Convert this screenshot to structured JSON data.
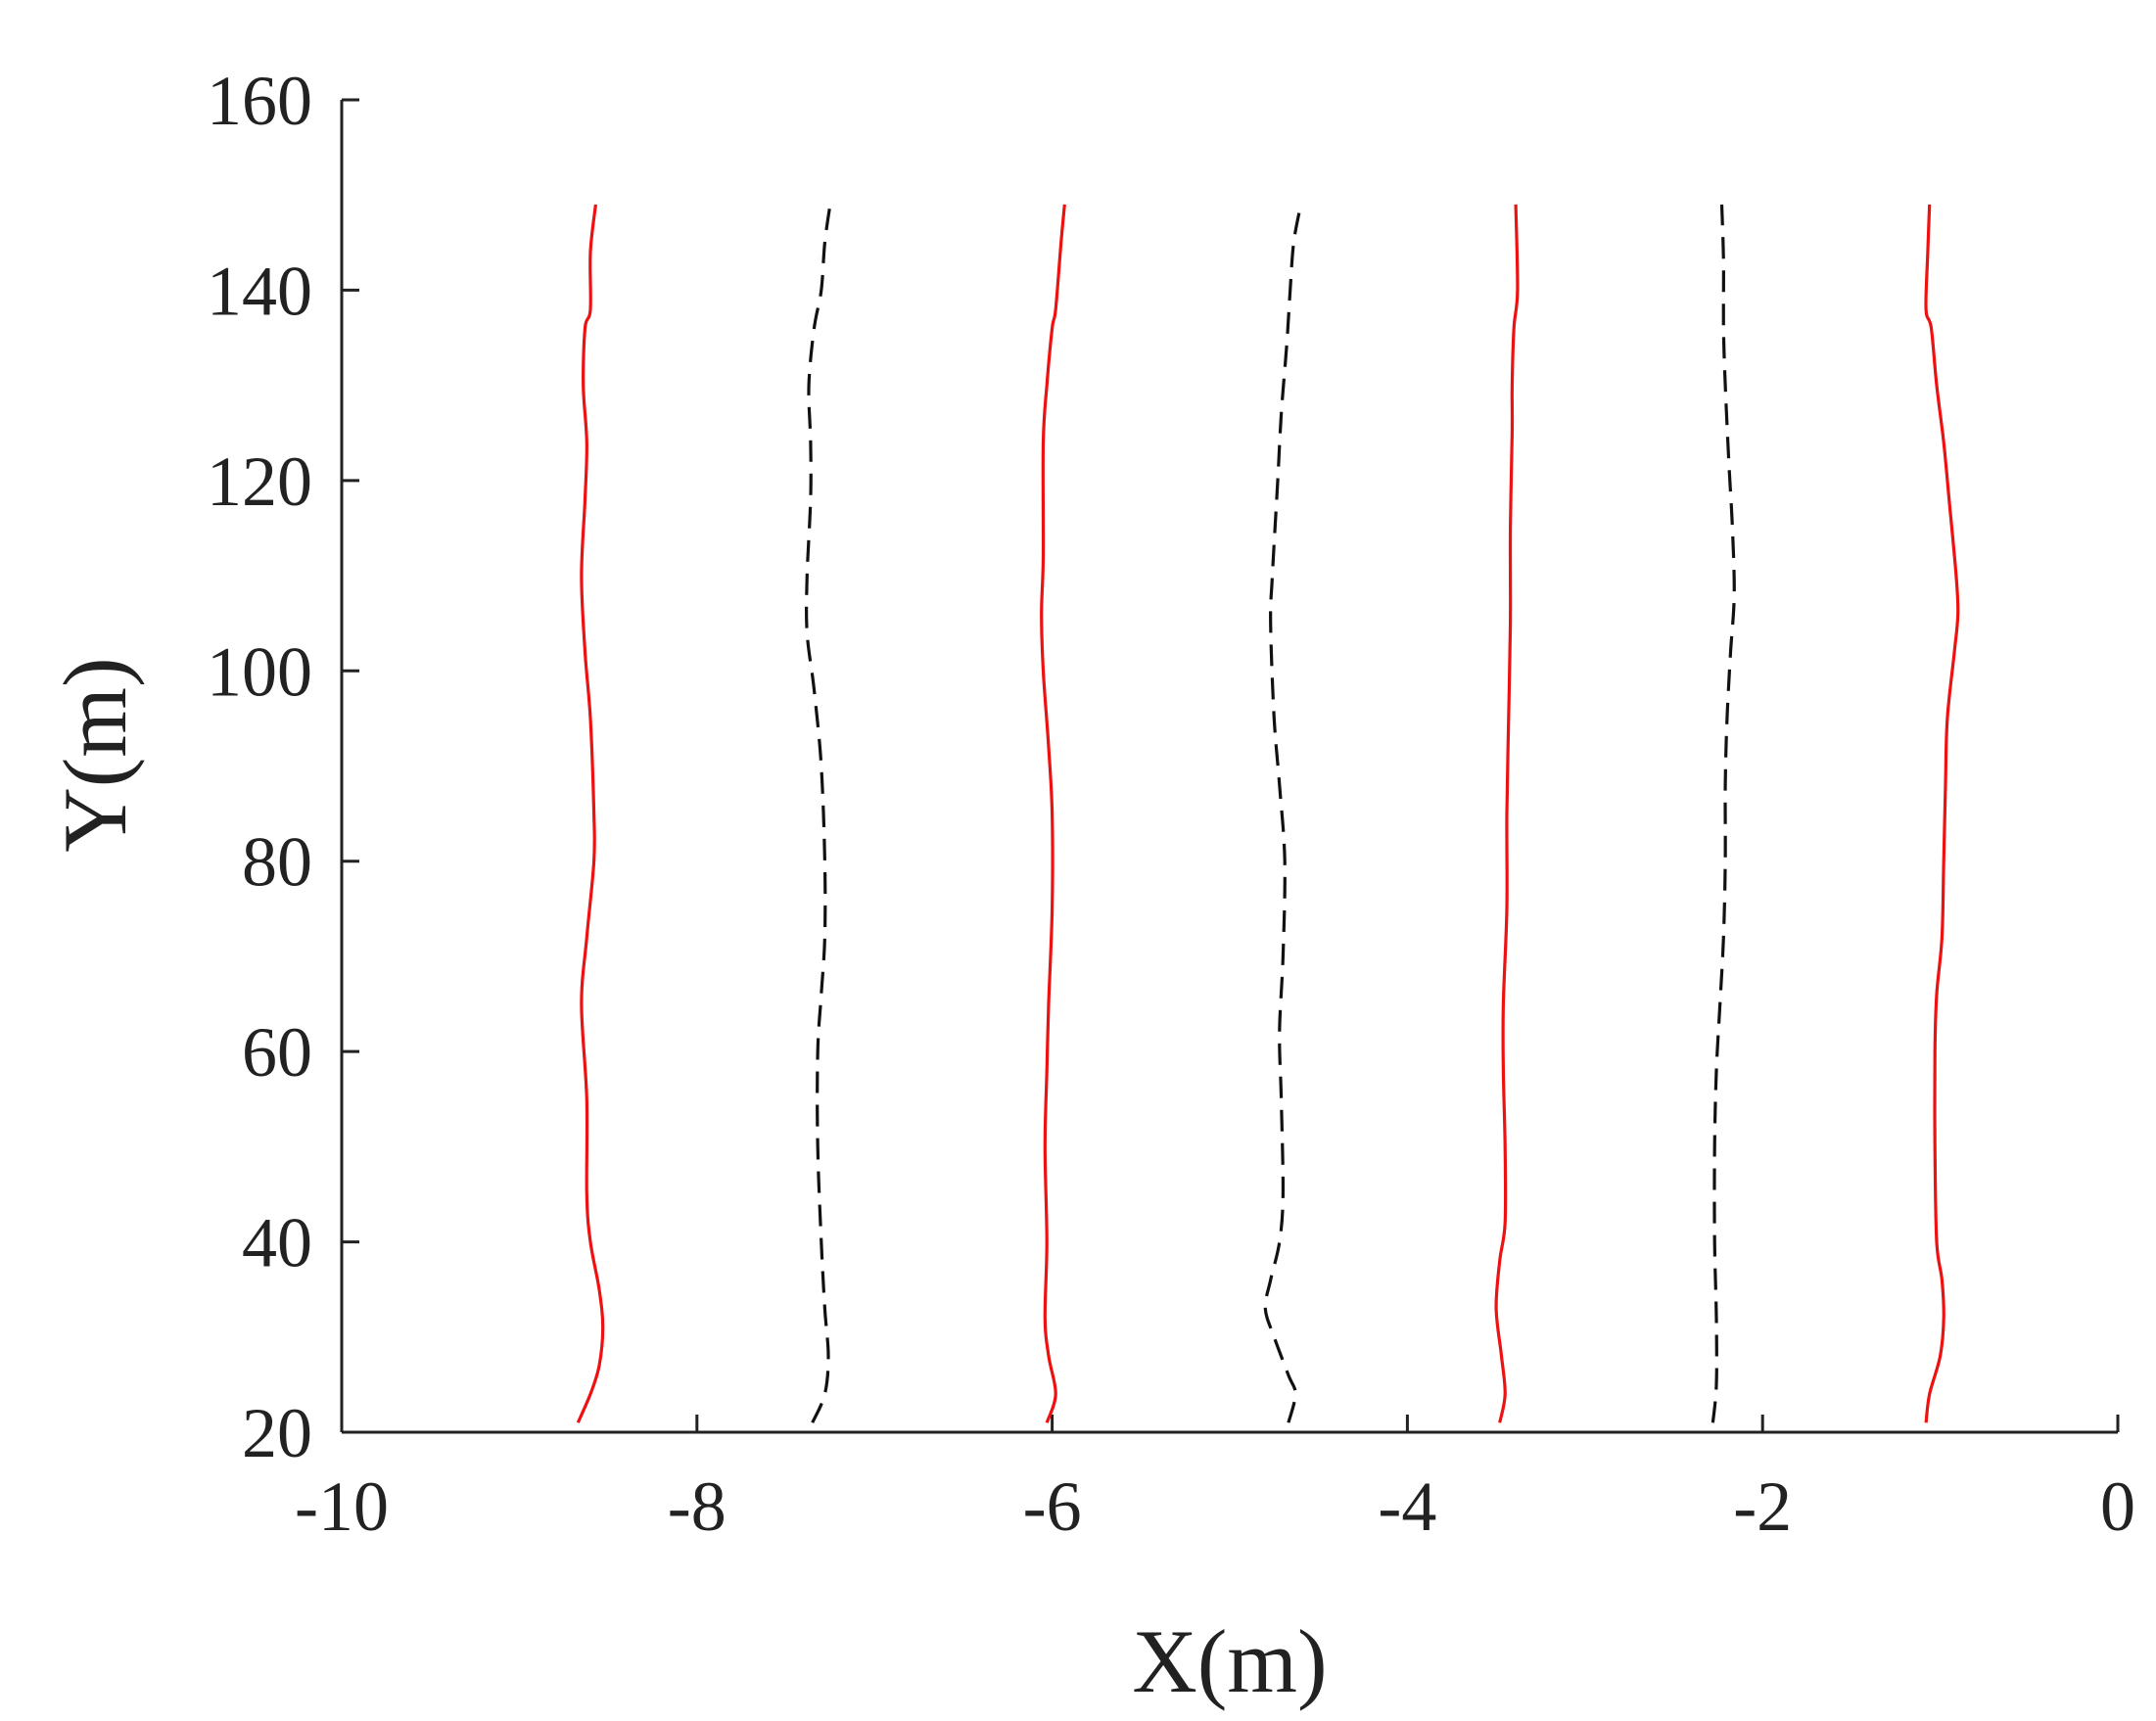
{
  "chart_data": {
    "type": "line",
    "title": "",
    "xlabel": "X(m)",
    "ylabel": "Y(m)",
    "xlim": [
      -10,
      0
    ],
    "ylim": [
      20,
      160
    ],
    "xticks": [
      -10,
      -8,
      -6,
      -4,
      -2,
      0
    ],
    "yticks": [
      20,
      40,
      60,
      80,
      100,
      120,
      140,
      160
    ],
    "xtick_labels": [
      "-10",
      "-8",
      "-6",
      "-4",
      "-2",
      "0"
    ],
    "ytick_labels": [
      "20",
      "40",
      "60",
      "80",
      "100",
      "120",
      "140",
      "160"
    ],
    "grid": false,
    "legend": "none",
    "series": [
      {
        "color": "#ee1111",
        "style": "solid",
        "points": [
          [
            -8.67,
            21
          ],
          [
            -8.6,
            24
          ],
          [
            -8.55,
            27
          ],
          [
            -8.53,
            31
          ],
          [
            -8.55,
            35
          ],
          [
            -8.6,
            40
          ],
          [
            -8.62,
            45
          ],
          [
            -8.62,
            55
          ],
          [
            -8.65,
            65
          ],
          [
            -8.62,
            72
          ],
          [
            -8.58,
            80
          ],
          [
            -8.58,
            85
          ],
          [
            -8.6,
            95
          ],
          [
            -8.63,
            102
          ],
          [
            -8.65,
            110
          ],
          [
            -8.63,
            118
          ],
          [
            -8.62,
            124
          ],
          [
            -8.64,
            130
          ],
          [
            -8.63,
            136
          ],
          [
            -8.6,
            138
          ],
          [
            -8.6,
            144
          ],
          [
            -8.57,
            149
          ]
        ]
      },
      {
        "color": "#111111",
        "style": "dashed",
        "points": [
          [
            -7.35,
            21
          ],
          [
            -7.28,
            24
          ],
          [
            -7.26,
            28
          ],
          [
            -7.28,
            33
          ],
          [
            -7.3,
            40
          ],
          [
            -7.32,
            50
          ],
          [
            -7.32,
            60
          ],
          [
            -7.3,
            66
          ],
          [
            -7.28,
            72
          ],
          [
            -7.28,
            80
          ],
          [
            -7.3,
            90
          ],
          [
            -7.34,
            98
          ],
          [
            -7.38,
            104
          ],
          [
            -7.38,
            110
          ],
          [
            -7.36,
            118
          ],
          [
            -7.36,
            124
          ],
          [
            -7.37,
            130
          ],
          [
            -7.34,
            136
          ],
          [
            -7.3,
            140
          ],
          [
            -7.28,
            145
          ],
          [
            -7.25,
            149
          ]
        ]
      },
      {
        "color": "#ee1111",
        "style": "solid",
        "points": [
          [
            -6.03,
            21
          ],
          [
            -5.98,
            24
          ],
          [
            -6.02,
            28
          ],
          [
            -6.04,
            32
          ],
          [
            -6.03,
            40
          ],
          [
            -6.04,
            50
          ],
          [
            -6.03,
            58
          ],
          [
            -6.02,
            65
          ],
          [
            -6.0,
            75
          ],
          [
            -6.0,
            85
          ],
          [
            -6.02,
            92
          ],
          [
            -6.05,
            100
          ],
          [
            -6.06,
            106
          ],
          [
            -6.05,
            112
          ],
          [
            -6.05,
            124
          ],
          [
            -6.03,
            130
          ],
          [
            -6.0,
            136
          ],
          [
            -5.98,
            138
          ],
          [
            -5.95,
            145
          ],
          [
            -5.93,
            149
          ]
        ]
      },
      {
        "color": "#111111",
        "style": "dashed",
        "points": [
          [
            -4.67,
            21
          ],
          [
            -4.63,
            24
          ],
          [
            -4.67,
            26
          ],
          [
            -4.75,
            30
          ],
          [
            -4.8,
            33
          ],
          [
            -4.77,
            36
          ],
          [
            -4.72,
            40
          ],
          [
            -4.7,
            45
          ],
          [
            -4.71,
            55
          ],
          [
            -4.72,
            62
          ],
          [
            -4.7,
            70
          ],
          [
            -4.69,
            80
          ],
          [
            -4.72,
            88
          ],
          [
            -4.75,
            95
          ],
          [
            -4.77,
            105
          ],
          [
            -4.76,
            110
          ],
          [
            -4.73,
            120
          ],
          [
            -4.71,
            127
          ],
          [
            -4.68,
            134
          ],
          [
            -4.66,
            140
          ],
          [
            -4.64,
            145
          ],
          [
            -4.6,
            149
          ]
        ]
      },
      {
        "color": "#ee1111",
        "style": "solid",
        "points": [
          [
            -3.48,
            21
          ],
          [
            -3.45,
            24
          ],
          [
            -3.47,
            28
          ],
          [
            -3.5,
            33
          ],
          [
            -3.48,
            38
          ],
          [
            -3.45,
            42
          ],
          [
            -3.45,
            50
          ],
          [
            -3.46,
            58
          ],
          [
            -3.46,
            65
          ],
          [
            -3.44,
            75
          ],
          [
            -3.44,
            85
          ],
          [
            -3.43,
            95
          ],
          [
            -3.42,
            105
          ],
          [
            -3.42,
            115
          ],
          [
            -3.41,
            125
          ],
          [
            -3.41,
            130
          ],
          [
            -3.4,
            136
          ],
          [
            -3.38,
            140
          ],
          [
            -3.39,
            149
          ]
        ]
      },
      {
        "color": "#111111",
        "style": "dashed",
        "points": [
          [
            -2.28,
            21
          ],
          [
            -2.26,
            25
          ],
          [
            -2.26,
            32
          ],
          [
            -2.27,
            40
          ],
          [
            -2.27,
            50
          ],
          [
            -2.26,
            58
          ],
          [
            -2.24,
            65
          ],
          [
            -2.22,
            72
          ],
          [
            -2.21,
            80
          ],
          [
            -2.21,
            88
          ],
          [
            -2.2,
            95
          ],
          [
            -2.18,
            102
          ],
          [
            -2.16,
            108
          ],
          [
            -2.17,
            115
          ],
          [
            -2.19,
            122
          ],
          [
            -2.21,
            130
          ],
          [
            -2.22,
            136
          ],
          [
            -2.22,
            143
          ],
          [
            -2.23,
            149
          ]
        ]
      },
      {
        "color": "#ee1111",
        "style": "solid",
        "points": [
          [
            -1.08,
            21
          ],
          [
            -1.06,
            24
          ],
          [
            -1.0,
            28
          ],
          [
            -0.98,
            32
          ],
          [
            -0.99,
            36
          ],
          [
            -1.02,
            40
          ],
          [
            -1.03,
            50
          ],
          [
            -1.03,
            60
          ],
          [
            -1.02,
            66
          ],
          [
            -0.99,
            72
          ],
          [
            -0.98,
            80
          ],
          [
            -0.97,
            88
          ],
          [
            -0.96,
            95
          ],
          [
            -0.92,
            102
          ],
          [
            -0.9,
            106
          ],
          [
            -0.91,
            110
          ],
          [
            -0.95,
            118
          ],
          [
            -0.98,
            124
          ],
          [
            -1.02,
            130
          ],
          [
            -1.05,
            136
          ],
          [
            -1.08,
            138
          ],
          [
            -1.07,
            144
          ],
          [
            -1.06,
            149
          ]
        ]
      }
    ]
  }
}
